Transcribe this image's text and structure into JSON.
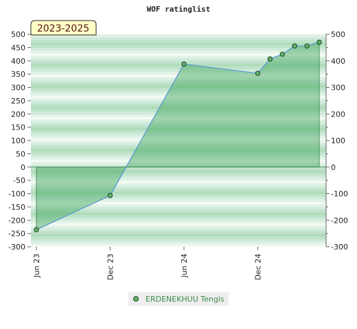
{
  "chart_data": {
    "type": "area",
    "title": "WOF ratinglist",
    "period_label": "2023-2025",
    "xlabel": "",
    "ylabel": "",
    "x_ticks": [
      "Jun 23",
      "Dec 23",
      "Jun 24",
      "Dec 24"
    ],
    "ylim": [
      -300,
      500
    ],
    "y_ticks": [
      -300,
      -250,
      -200,
      -150,
      -100,
      -50,
      0,
      50,
      100,
      150,
      200,
      250,
      300,
      350,
      400,
      450,
      500
    ],
    "y_ticks_right": [
      -300,
      -200,
      -100,
      0,
      100,
      200,
      300,
      400,
      500
    ],
    "legend_position": "bottom-center",
    "series": [
      {
        "name": "ERDENEKHUU Tengis",
        "points": [
          {
            "x": "2023-06",
            "y": -236
          },
          {
            "x": "2023-12",
            "y": -107
          },
          {
            "x": "2024-06",
            "y": 388
          },
          {
            "x": "2024-12",
            "y": 353
          },
          {
            "x": "2025-01",
            "y": 407
          },
          {
            "x": "2025-02",
            "y": 425
          },
          {
            "x": "2025-03",
            "y": 456
          },
          {
            "x": "2025-04",
            "y": 456
          },
          {
            "x": "2025-05",
            "y": 470
          }
        ]
      }
    ]
  }
}
